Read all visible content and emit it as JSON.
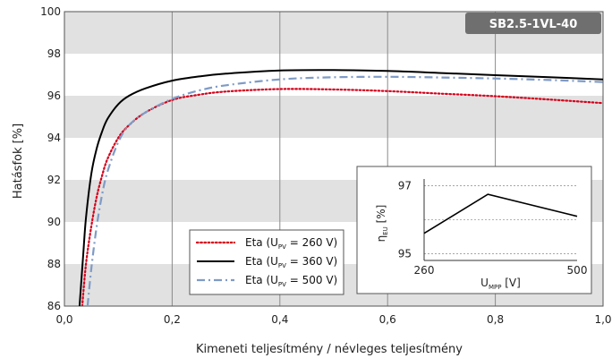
{
  "chart_data": {
    "type": "line",
    "badge": "SB2.5-1VL-40",
    "ylabel": "Hatásfok [%]",
    "xlabel": "Kimeneti teljesítmény / névleges teljesítmény",
    "xlim": [
      0.0,
      1.0
    ],
    "ylim": [
      86,
      100
    ],
    "x_ticks": [
      "0,0",
      "0,2",
      "0,4",
      "0,6",
      "0,8",
      "1,0"
    ],
    "y_ticks": [
      "86",
      "88",
      "90",
      "92",
      "94",
      "96",
      "98",
      "100"
    ],
    "grid": "vertical lines at 0.2 steps, alternating grey bands every 2 %",
    "legend_position": "bottom-center",
    "series": [
      {
        "name": "Eta (U",
        "sub": "PV",
        "name_suffix": " = 260 V)",
        "color": "#d4001a",
        "style": "dotted",
        "x": [
          0.033,
          0.04,
          0.05,
          0.06,
          0.07,
          0.08,
          0.1,
          0.12,
          0.15,
          0.2,
          0.25,
          0.3,
          0.4,
          0.5,
          0.6,
          0.7,
          0.8,
          0.9,
          1.0
        ],
        "y": [
          86.0,
          88.0,
          89.8,
          91.2,
          92.2,
          93.0,
          94.0,
          94.6,
          95.2,
          95.8,
          96.05,
          96.2,
          96.32,
          96.3,
          96.22,
          96.1,
          95.98,
          95.82,
          95.65
        ]
      },
      {
        "name": "Eta (U",
        "sub": "PV",
        "name_suffix": " = 360 V)",
        "color": "#000000",
        "style": "solid",
        "x": [
          0.028,
          0.035,
          0.04,
          0.05,
          0.06,
          0.07,
          0.08,
          0.1,
          0.12,
          0.15,
          0.2,
          0.25,
          0.3,
          0.4,
          0.5,
          0.6,
          0.7,
          0.8,
          0.9,
          1.0
        ],
        "y": [
          86.0,
          88.5,
          90.2,
          92.3,
          93.5,
          94.3,
          94.9,
          95.6,
          96.0,
          96.35,
          96.72,
          96.92,
          97.05,
          97.2,
          97.22,
          97.18,
          97.08,
          96.98,
          96.88,
          96.78
        ]
      },
      {
        "name": "Eta (U",
        "sub": "PV",
        "name_suffix": " = 500 V)",
        "color": "#7f9bc6",
        "style": "dashdot",
        "x": [
          0.043,
          0.05,
          0.06,
          0.07,
          0.08,
          0.1,
          0.12,
          0.15,
          0.2,
          0.25,
          0.3,
          0.4,
          0.5,
          0.6,
          0.7,
          0.8,
          0.9,
          1.0
        ],
        "y": [
          86.0,
          87.8,
          89.8,
          91.3,
          92.4,
          93.8,
          94.6,
          95.2,
          95.85,
          96.25,
          96.5,
          96.78,
          96.88,
          96.9,
          96.87,
          96.82,
          96.75,
          96.65
        ]
      }
    ],
    "inset": {
      "type": "line",
      "ylabel": "η",
      "ylabel_sub": "EU",
      "ylabel_suffix": " [%]",
      "xlabel": "U",
      "xlabel_sub": "MPP",
      "xlabel_suffix": " [V]",
      "xlim": [
        260,
        500
      ],
      "ylim": [
        94.8,
        97.2
      ],
      "x_ticks": [
        "260",
        "500"
      ],
      "y_ticks": [
        "97",
        "95"
      ],
      "x": [
        260,
        360,
        500
      ],
      "y": [
        95.6,
        96.75,
        96.1
      ],
      "color": "#000000"
    }
  }
}
